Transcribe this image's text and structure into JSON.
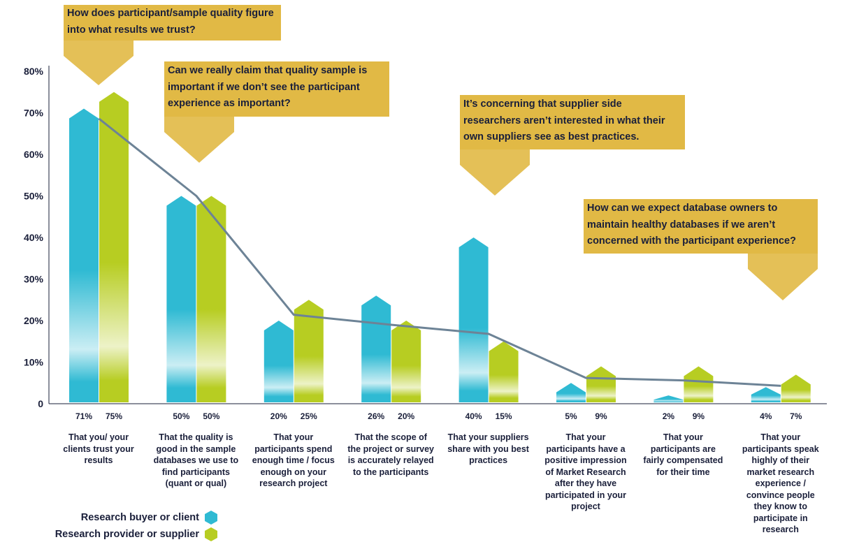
{
  "colors": {
    "buyer": "#2fbad3",
    "provider": "#b7cd22",
    "line": "#6d8396",
    "callout": "#e1b945"
  },
  "legend": [
    {
      "label": "Research buyer or client",
      "color_key": "buyer",
      "icon": "hexagon-icon"
    },
    {
      "label": "Research provider or supplier",
      "color_key": "provider",
      "icon": "hexagon-icon"
    }
  ],
  "callouts": [
    "How does participant/sample quality figure into what results we trust?",
    "Can we really claim that quality sample is important if we don’t see the participant experience as important?",
    "It’s concerning that supplier side researchers aren’t interested in what their own suppliers see as best practices.",
    "How can we expect database owners to maintain healthy databases if we aren’t concerned with the participant experience?"
  ],
  "chart_data": {
    "type": "bar",
    "ylim": [
      0,
      80
    ],
    "yticks": [
      "0",
      "10%",
      "20%",
      "30%",
      "40%",
      "50%",
      "60%",
      "70%",
      "80%"
    ],
    "categories": [
      "That you/ your clients trust your results",
      "That the quality is good in the sample databases we use to find participants (quant or qual)",
      "That your participants spend enough time / focus enough on your research project",
      "That the scope of the project or survey is accurately relayed to the participants",
      "That your suppliers share with you best practices",
      "That your participants have a positive impression of Market Research after they have participated in your project",
      "That your participants are fairly compensated for their time",
      "That your participants speak highly of their market research experience / convince people they know to participate in research"
    ],
    "series": [
      {
        "name": "Research buyer or client",
        "values": [
          71,
          50,
          20,
          26,
          40,
          5,
          2,
          4
        ]
      },
      {
        "name": "Research provider or supplier",
        "values": [
          75,
          50,
          25,
          20,
          15,
          9,
          9,
          7
        ]
      }
    ],
    "value_labels": {
      "buyer": [
        "71%",
        "50%",
        "20%",
        "26%",
        "40%",
        "5%",
        "2%",
        "4%"
      ],
      "provider": [
        "75%",
        "50%",
        "25%",
        "20%",
        "15%",
        "9%",
        "9%",
        "7%"
      ]
    },
    "trend_line_values": [
      68.6,
      50,
      21.4,
      19,
      16.8,
      6.2,
      5.6,
      4.3
    ],
    "grid": false,
    "legend_position": "bottom-left"
  }
}
